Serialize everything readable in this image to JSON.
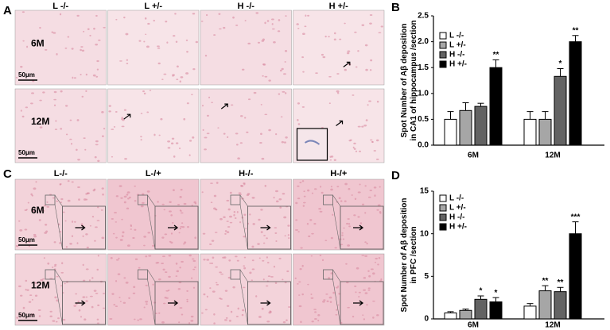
{
  "panels": [
    {
      "label": "A",
      "columns": [
        "L -/-",
        "L +/-",
        "H -/-",
        "H +/-"
      ],
      "rows": [
        "6M",
        "12M"
      ],
      "scale_bar": "50μm"
    },
    {
      "label": "C",
      "columns": [
        "L-/-",
        "L-/+",
        "H-/-",
        "H-/+"
      ],
      "rows": [
        "6M",
        "12M"
      ],
      "scale_bar": "50μm"
    }
  ],
  "chart_data": [
    {
      "type": "bar",
      "panel": "B",
      "y_label": [
        "Spot Number of Aβ deposition",
        "in CA1 of hippocampus /section"
      ],
      "categories": [
        "6M",
        "12M"
      ],
      "series": [
        {
          "name": "L -/-",
          "color": "#ffffff",
          "values": [
            0.5,
            0.5
          ],
          "errors": [
            0.15,
            0.15
          ],
          "annotations": [
            null,
            null
          ]
        },
        {
          "name": "L +/-",
          "color": "#a6a6a6",
          "values": [
            0.67,
            0.5
          ],
          "errors": [
            0.15,
            0.15
          ],
          "annotations": [
            null,
            null
          ]
        },
        {
          "name": "H -/-",
          "color": "#636363",
          "values": [
            0.75,
            1.33
          ],
          "errors": [
            0.06,
            0.15
          ],
          "annotations": [
            null,
            "*"
          ]
        },
        {
          "name": "H +/-",
          "color": "#000000",
          "values": [
            1.5,
            2.0
          ],
          "errors": [
            0.15,
            0.12
          ],
          "annotations": [
            "**",
            "**"
          ]
        }
      ],
      "ylim": [
        0,
        2.5
      ],
      "yticks": [
        {
          "value": 0,
          "label": "0.0"
        },
        0.5,
        {
          "value": 1,
          "label": "1.0"
        },
        1.5,
        {
          "value": 2,
          "label": "2.0"
        },
        2.5
      ]
    },
    {
      "type": "bar",
      "panel": "D",
      "y_label": [
        "Spot Number of Aβ deposition",
        "in PFC /section"
      ],
      "categories": [
        "6M",
        "12M"
      ],
      "series": [
        {
          "name": "L -/-",
          "color": "#ffffff",
          "values": [
            0.7,
            1.5
          ],
          "errors": [
            0.15,
            0.3
          ],
          "annotations": [
            null,
            null
          ]
        },
        {
          "name": "L +/-",
          "color": "#a6a6a6",
          "values": [
            1.0,
            3.3
          ],
          "errors": [
            0.15,
            0.6
          ],
          "annotations": [
            null,
            "**"
          ]
        },
        {
          "name": "H -/-",
          "color": "#636363",
          "values": [
            2.3,
            3.2
          ],
          "errors": [
            0.4,
            0.5
          ],
          "annotations": [
            "*",
            "**"
          ]
        },
        {
          "name": "H +/-",
          "color": "#000000",
          "values": [
            2.0,
            10.0
          ],
          "errors": [
            0.5,
            1.4
          ],
          "annotations": [
            "*",
            "***"
          ]
        }
      ],
      "ylim": [
        0,
        15
      ],
      "yticks": [
        0,
        5,
        10,
        15
      ]
    }
  ]
}
